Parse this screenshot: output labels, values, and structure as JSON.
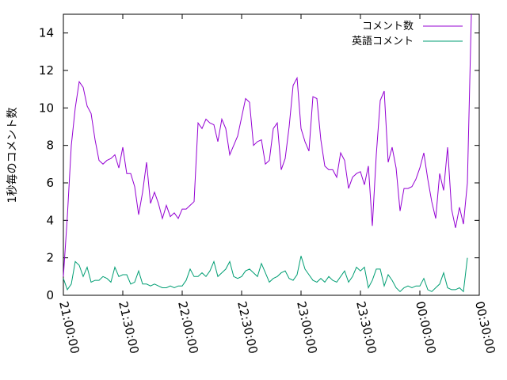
{
  "chart_data": {
    "type": "line",
    "ylabel": "1秒毎のコメント数",
    "xlabel": "",
    "ylim": [
      0,
      15
    ],
    "xlim": [
      "21:00:00",
      "00:30:00"
    ],
    "y_ticks": [
      "0",
      "2",
      "4",
      "6",
      "8",
      "10",
      "12",
      "14"
    ],
    "x_ticks": [
      "21:00:00",
      "21:30:00",
      "22:00:00",
      "22:30:00",
      "23:00:00",
      "23:30:00",
      "00:00:00",
      "00:30:00"
    ],
    "grid": false,
    "legend_position": "top-right",
    "x_step_minutes": 2,
    "series": [
      {
        "name": "コメント数",
        "color": "#9400d3",
        "values": [
          1.0,
          4.2,
          8.0,
          10.0,
          11.4,
          11.1,
          10.1,
          9.7,
          8.3,
          7.2,
          7.0,
          7.2,
          7.3,
          7.5,
          6.8,
          7.9,
          6.5,
          6.5,
          5.8,
          4.3,
          5.5,
          7.1,
          4.9,
          5.5,
          4.9,
          4.1,
          4.8,
          4.2,
          4.4,
          4.1,
          4.6,
          4.6,
          4.8,
          5.0,
          9.2,
          8.9,
          9.4,
          9.2,
          9.1,
          8.2,
          9.4,
          8.9,
          7.5,
          8.0,
          8.5,
          9.5,
          10.5,
          10.3,
          8.0,
          8.2,
          8.3,
          7.0,
          7.2,
          8.9,
          9.2,
          6.7,
          7.3,
          9.0,
          11.2,
          11.6,
          8.9,
          8.2,
          7.7,
          10.6,
          10.5,
          8.3,
          6.9,
          6.7,
          6.7,
          6.3,
          7.6,
          7.2,
          5.7,
          6.3,
          6.5,
          6.6,
          5.9,
          6.9,
          3.7,
          7.5,
          10.4,
          10.9,
          7.1,
          7.9,
          6.8,
          4.5,
          5.7,
          5.7,
          5.8,
          6.2,
          6.8,
          7.6,
          6.2,
          5.0,
          4.1,
          6.5,
          5.6,
          7.9,
          4.6,
          3.6,
          4.7,
          3.8,
          6.0,
          15.0
        ]
      },
      {
        "name": "英語コメント",
        "color": "#009e73",
        "values": [
          0.9,
          0.3,
          0.6,
          1.8,
          1.6,
          1.0,
          1.5,
          0.7,
          0.8,
          0.8,
          1.0,
          0.9,
          0.7,
          1.5,
          1.0,
          1.1,
          1.1,
          0.6,
          0.7,
          1.3,
          0.6,
          0.6,
          0.5,
          0.6,
          0.5,
          0.4,
          0.4,
          0.5,
          0.4,
          0.5,
          0.5,
          0.8,
          1.4,
          1.0,
          1.0,
          1.2,
          1.0,
          1.3,
          1.8,
          1.0,
          1.2,
          1.4,
          1.8,
          1.0,
          0.9,
          1.0,
          1.3,
          1.4,
          1.2,
          1.0,
          1.7,
          1.2,
          0.7,
          0.9,
          1.0,
          1.2,
          1.3,
          0.9,
          0.8,
          1.1,
          2.1,
          1.4,
          1.1,
          0.8,
          0.7,
          0.9,
          0.7,
          1.0,
          0.8,
          0.7,
          1.0,
          1.3,
          0.7,
          1.0,
          1.5,
          1.3,
          1.5,
          0.4,
          0.8,
          1.4,
          1.4,
          0.5,
          1.1,
          0.8,
          0.4,
          0.2,
          0.4,
          0.5,
          0.4,
          0.5,
          0.5,
          0.9,
          0.3,
          0.2,
          0.4,
          0.6,
          1.2,
          0.4,
          0.3,
          0.3,
          0.4,
          0.2,
          2.0
        ]
      }
    ]
  }
}
